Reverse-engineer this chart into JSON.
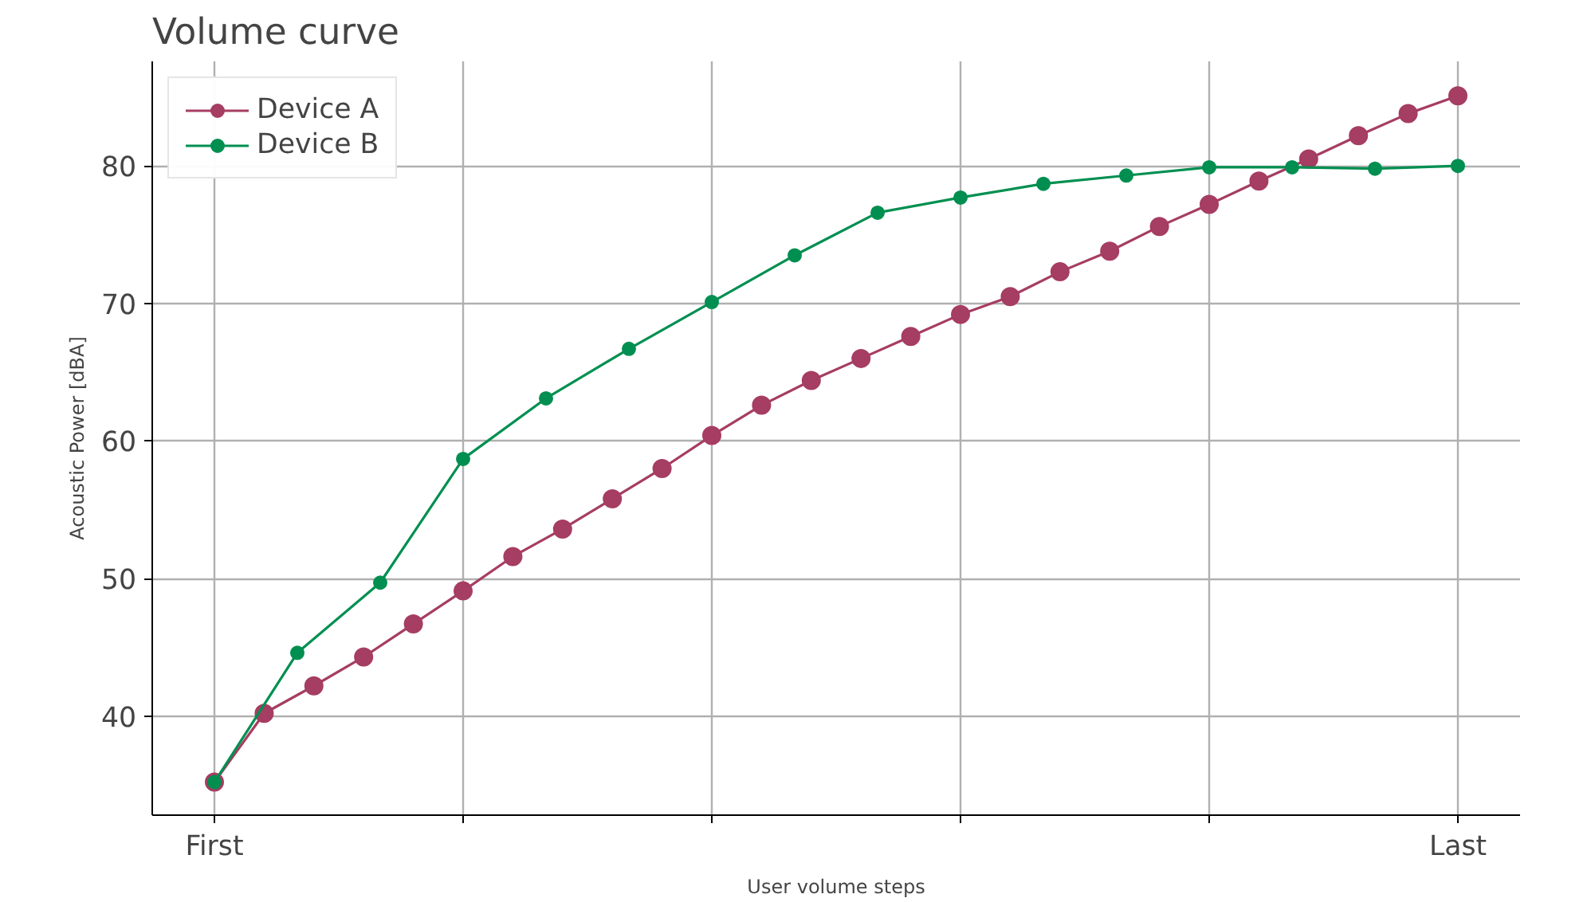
{
  "chart_data": {
    "type": "line",
    "title": "Volume curve",
    "xlabel": "User volume steps",
    "ylabel": "Acoustic Power [dBA]",
    "categories": [
      "First",
      null,
      null,
      null,
      null,
      null,
      null,
      null,
      null,
      null,
      null,
      null,
      null,
      null,
      null,
      null,
      null,
      null,
      null,
      null,
      null,
      null,
      null,
      null,
      null,
      null,
      null,
      null,
      null,
      null,
      null,
      null,
      null,
      null,
      null,
      null,
      null,
      null,
      null,
      null,
      null,
      null,
      null,
      null,
      null,
      null,
      null,
      null,
      null,
      null,
      null,
      null,
      null,
      null,
      null,
      null,
      null,
      null,
      null,
      null,
      null,
      null,
      null,
      null,
      null,
      null,
      null,
      null,
      null,
      null,
      null,
      null,
      null,
      null,
      null,
      "Last"
    ],
    "ylim": [
      32.8,
      87.6
    ],
    "yticks": [
      40,
      50,
      60,
      70,
      80
    ],
    "grid": true,
    "legend": "top left",
    "marker": "circle",
    "line_style": "solid",
    "series": [
      {
        "name": "Device A",
        "color": "#a63d62",
        "values": [
          35.2,
          null,
          null,
          40.2,
          null,
          null,
          42.2,
          null,
          null,
          44.3,
          null,
          null,
          46.7,
          null,
          null,
          49.1,
          null,
          null,
          51.6,
          null,
          null,
          53.6,
          null,
          null,
          55.8,
          null,
          null,
          58.0,
          null,
          null,
          60.4,
          null,
          null,
          62.6,
          null,
          null,
          64.4,
          null,
          null,
          66.0,
          null,
          null,
          67.6,
          null,
          null,
          69.2,
          null,
          null,
          70.5,
          null,
          null,
          72.3,
          null,
          null,
          73.8,
          null,
          null,
          75.6,
          null,
          null,
          77.2,
          null,
          null,
          78.9,
          null,
          null,
          80.5,
          null,
          null,
          82.2,
          null,
          null,
          83.8,
          null,
          null,
          85.1
        ]
      },
      {
        "name": "Device B",
        "color": "#008f50",
        "values": [
          35.2,
          null,
          null,
          null,
          null,
          44.6,
          null,
          null,
          null,
          null,
          49.7,
          null,
          null,
          null,
          null,
          58.7,
          null,
          null,
          null,
          null,
          63.1,
          null,
          null,
          null,
          null,
          66.7,
          null,
          null,
          null,
          null,
          70.1,
          null,
          null,
          null,
          null,
          73.5,
          null,
          null,
          null,
          null,
          76.6,
          null,
          null,
          null,
          null,
          77.7,
          null,
          null,
          null,
          null,
          78.7,
          null,
          null,
          null,
          null,
          79.3,
          null,
          null,
          null,
          null,
          79.9,
          null,
          null,
          null,
          null,
          79.9,
          null,
          null,
          null,
          null,
          79.8,
          null,
          null,
          null,
          null,
          80.0
        ]
      }
    ]
  }
}
